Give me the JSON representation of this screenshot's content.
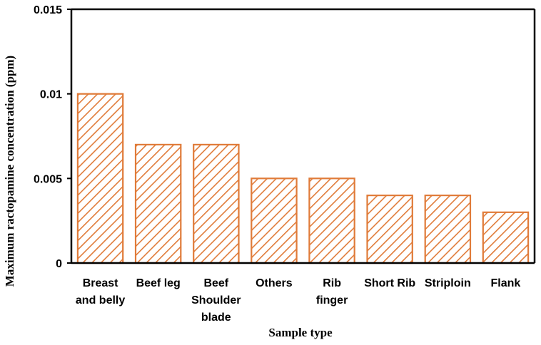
{
  "chart_data": {
    "type": "bar",
    "categories": [
      [
        "Breast",
        "and belly"
      ],
      [
        "Beef leg"
      ],
      [
        "Beef",
        "Shoulder",
        "blade"
      ],
      [
        "Others"
      ],
      [
        "Rib",
        "finger"
      ],
      [
        "Short Rib"
      ],
      [
        "Striploin"
      ],
      [
        "Flank"
      ]
    ],
    "values": [
      0.01,
      0.007,
      0.007,
      0.005,
      0.005,
      0.004,
      0.004,
      0.003
    ],
    "xlabel": "Sample type",
    "ylabel": "Maximum ractopamine concentration (ppm)",
    "ylim": [
      0,
      0.015
    ],
    "yticks": [
      0,
      0.005,
      0.01,
      0.015
    ],
    "ytick_labels": [
      "0",
      "0.005",
      "0.01",
      "0.015"
    ],
    "grid": false,
    "bar_color": "#E07B39",
    "bar_fill": "diagonal-hatch"
  }
}
